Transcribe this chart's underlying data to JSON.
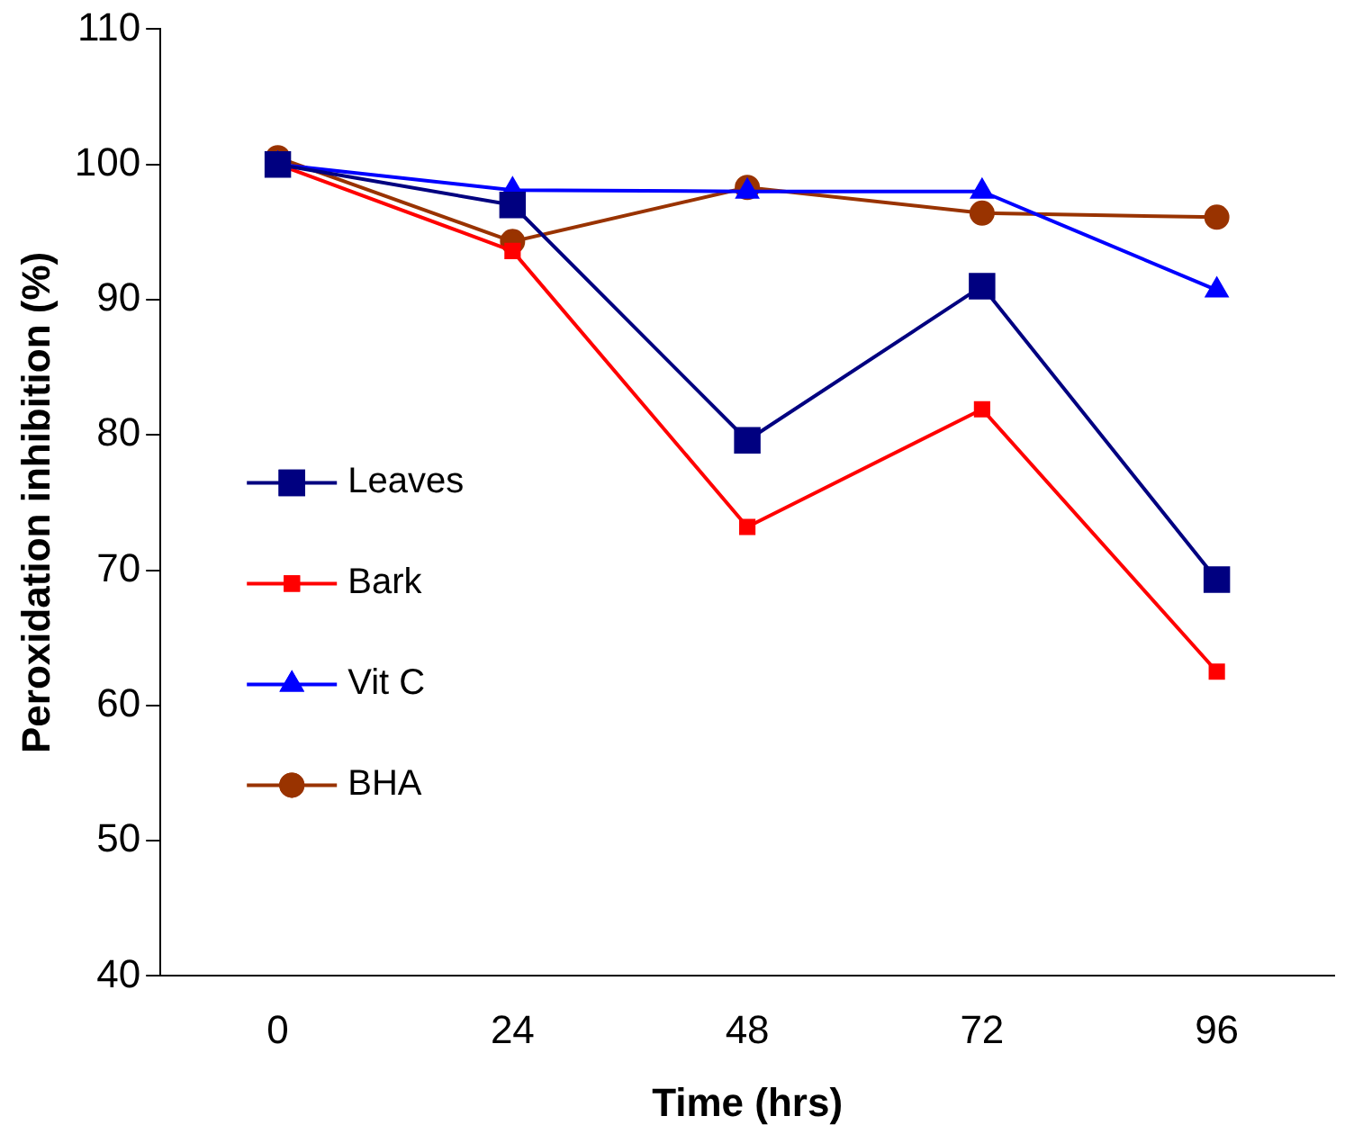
{
  "chart_data": {
    "type": "line",
    "xlabel": "Time (hrs)",
    "ylabel": "Peroxidation inhibition (%)",
    "categories": [
      "0",
      "24",
      "48",
      "72",
      "96"
    ],
    "ylim": [
      40,
      110
    ],
    "yticks": [
      40,
      50,
      60,
      70,
      80,
      90,
      100,
      110
    ],
    "grid": false,
    "legend": "left",
    "series": [
      {
        "name": "Leaves",
        "color": "#000080",
        "marker": "square",
        "values": [
          100,
          97,
          79.6,
          91,
          69.3
        ]
      },
      {
        "name": "Bark",
        "color": "#ff0000",
        "marker": "square",
        "values": [
          100,
          93.6,
          73.2,
          81.9,
          62.5
        ]
      },
      {
        "name": "Vit C",
        "color": "#0000ff",
        "marker": "triangle",
        "values": [
          100,
          98.1,
          98,
          98,
          90.7
        ]
      },
      {
        "name": "BHA",
        "color": "#993300",
        "marker": "circle",
        "values": [
          100.5,
          94.3,
          98.3,
          96.4,
          96.1
        ]
      }
    ]
  }
}
